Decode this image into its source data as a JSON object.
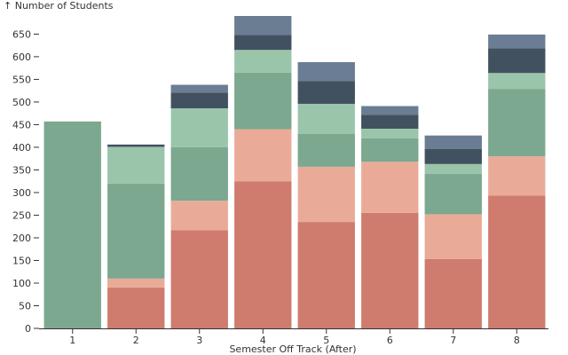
{
  "chart_data": {
    "type": "bar",
    "stacked": true,
    "ylabel": "↑ Number of Students",
    "xlabel": "Semester Off Track (After)",
    "categories": [
      "1",
      "2",
      "3",
      "4",
      "5",
      "6",
      "7",
      "8"
    ],
    "ylim": [
      0,
      690
    ],
    "yticks": [
      0,
      50,
      100,
      150,
      200,
      250,
      300,
      350,
      400,
      450,
      500,
      550,
      600,
      650
    ],
    "grid": false,
    "legend": "none",
    "series": [
      {
        "color": "#cf7b6e",
        "values": [
          0,
          90,
          217,
          325,
          235,
          255,
          153,
          293
        ]
      },
      {
        "color": "#e9ab98",
        "values": [
          0,
          20,
          65,
          115,
          122,
          113,
          99,
          87
        ]
      },
      {
        "color": "#7ba88f",
        "values": [
          457,
          210,
          118,
          125,
          73,
          52,
          89,
          149
        ]
      },
      {
        "color": "#9ac5ab",
        "values": [
          0,
          81,
          86,
          50,
          66,
          21,
          22,
          35
        ]
      },
      {
        "color": "#42515f",
        "values": [
          0,
          5,
          35,
          33,
          50,
          31,
          33,
          55
        ]
      },
      {
        "color": "#6a7d93",
        "values": [
          0,
          0,
          17,
          42,
          42,
          19,
          30,
          30
        ]
      }
    ]
  }
}
